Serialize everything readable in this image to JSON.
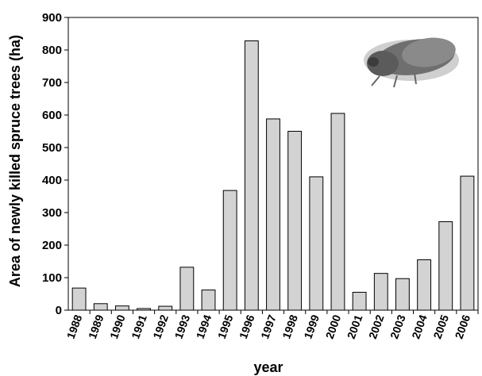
{
  "chart_data": {
    "type": "bar",
    "categories": [
      "1988",
      "1989",
      "1990",
      "1991",
      "1992",
      "1993",
      "1994",
      "1995",
      "1996",
      "1997",
      "1998",
      "1999",
      "2000",
      "2001",
      "2002",
      "2003",
      "2004",
      "2005",
      "2006"
    ],
    "values": [
      68,
      20,
      13,
      5,
      12,
      132,
      62,
      368,
      828,
      588,
      550,
      410,
      605,
      55,
      113,
      97,
      155,
      272,
      412
    ],
    "xlabel": "year",
    "ylabel": "Area of newly killed spruce trees (ha)",
    "ylim": [
      0,
      900
    ],
    "yticks": [
      0,
      100,
      200,
      300,
      400,
      500,
      600,
      700,
      800,
      900
    ],
    "grid": false,
    "legend": "none",
    "bar_color": "#d3d3d3",
    "edge_color": "#000000"
  },
  "decoration": {
    "beetle_icon": "bark-beetle-photo"
  }
}
